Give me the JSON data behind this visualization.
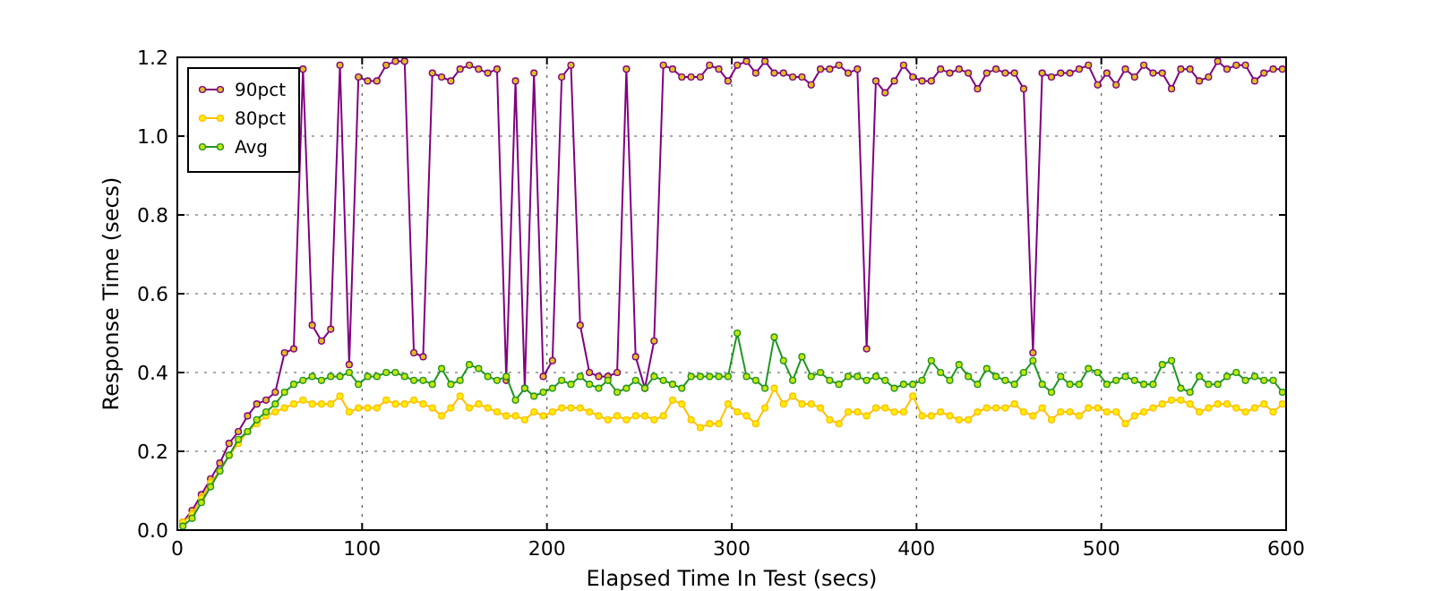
{
  "chart_data": {
    "type": "line",
    "xlabel": "Elapsed Time In Test (secs)",
    "ylabel": "Response Time (secs)",
    "x": [
      3,
      8,
      13,
      18,
      23,
      28,
      33,
      38,
      43,
      48,
      53,
      58,
      63,
      68,
      73,
      78,
      83,
      88,
      93,
      98,
      103,
      108,
      113,
      118,
      123,
      128,
      133,
      138,
      143,
      148,
      153,
      158,
      163,
      168,
      173,
      178,
      183,
      188,
      193,
      198,
      203,
      208,
      213,
      218,
      223,
      228,
      233,
      238,
      243,
      248,
      253,
      258,
      263,
      268,
      273,
      278,
      283,
      288,
      293,
      298,
      303,
      308,
      313,
      318,
      323,
      328,
      333,
      338,
      343,
      348,
      353,
      358,
      363,
      368,
      373,
      378,
      383,
      388,
      393,
      398,
      403,
      408,
      413,
      418,
      423,
      428,
      433,
      438,
      443,
      448,
      453,
      458,
      463,
      468,
      473,
      478,
      483,
      488,
      493,
      498,
      503,
      508,
      513,
      518,
      523,
      528,
      533,
      538,
      543,
      548,
      553,
      558,
      563,
      568,
      573,
      578,
      583,
      588,
      593,
      598
    ],
    "series": [
      {
        "name": "90pct",
        "color": "#800080",
        "values": [
          0.02,
          0.05,
          0.09,
          0.13,
          0.17,
          0.22,
          0.25,
          0.29,
          0.32,
          0.33,
          0.35,
          0.45,
          0.46,
          1.17,
          0.52,
          0.48,
          0.51,
          1.18,
          0.42,
          1.15,
          1.14,
          1.14,
          1.18,
          1.19,
          1.19,
          0.45,
          0.44,
          1.16,
          1.15,
          1.14,
          1.17,
          1.18,
          1.17,
          1.16,
          1.17,
          0.38,
          1.14,
          0.36,
          1.16,
          0.39,
          0.43,
          1.15,
          1.18,
          0.52,
          0.4,
          0.39,
          0.39,
          0.4,
          1.17,
          0.44,
          0.36,
          0.48,
          1.18,
          1.17,
          1.15,
          1.15,
          1.15,
          1.18,
          1.17,
          1.14,
          1.18,
          1.19,
          1.16,
          1.19,
          1.16,
          1.16,
          1.15,
          1.15,
          1.13,
          1.17,
          1.17,
          1.18,
          1.16,
          1.17,
          0.46,
          1.14,
          1.11,
          1.14,
          1.18,
          1.15,
          1.14,
          1.14,
          1.17,
          1.16,
          1.17,
          1.16,
          1.12,
          1.16,
          1.17,
          1.16,
          1.16,
          1.12,
          0.45,
          1.16,
          1.15,
          1.16,
          1.16,
          1.17,
          1.18,
          1.13,
          1.16,
          1.13,
          1.17,
          1.15,
          1.18,
          1.16,
          1.16,
          1.12,
          1.17,
          1.17,
          1.14,
          1.15,
          1.19,
          1.17,
          1.18,
          1.18,
          1.14,
          1.16,
          1.17,
          1.17
        ]
      },
      {
        "name": "80pct",
        "color": "#ffbf00",
        "values": [
          0.02,
          0.04,
          0.08,
          0.12,
          0.15,
          0.19,
          0.22,
          0.25,
          0.27,
          0.29,
          0.3,
          0.31,
          0.32,
          0.33,
          0.32,
          0.32,
          0.32,
          0.34,
          0.3,
          0.31,
          0.31,
          0.31,
          0.33,
          0.32,
          0.32,
          0.33,
          0.32,
          0.31,
          0.29,
          0.31,
          0.34,
          0.31,
          0.32,
          0.31,
          0.3,
          0.29,
          0.29,
          0.28,
          0.3,
          0.29,
          0.3,
          0.31,
          0.31,
          0.31,
          0.3,
          0.29,
          0.28,
          0.29,
          0.28,
          0.29,
          0.29,
          0.28,
          0.29,
          0.33,
          0.32,
          0.28,
          0.26,
          0.27,
          0.27,
          0.32,
          0.3,
          0.29,
          0.27,
          0.31,
          0.36,
          0.32,
          0.34,
          0.32,
          0.32,
          0.31,
          0.28,
          0.27,
          0.3,
          0.3,
          0.29,
          0.31,
          0.31,
          0.3,
          0.3,
          0.34,
          0.29,
          0.29,
          0.3,
          0.29,
          0.28,
          0.28,
          0.3,
          0.31,
          0.31,
          0.31,
          0.32,
          0.3,
          0.29,
          0.31,
          0.28,
          0.3,
          0.3,
          0.29,
          0.31,
          0.31,
          0.3,
          0.3,
          0.27,
          0.29,
          0.3,
          0.31,
          0.32,
          0.33,
          0.33,
          0.32,
          0.3,
          0.31,
          0.32,
          0.32,
          0.31,
          0.3,
          0.31,
          0.32,
          0.3,
          0.32
        ]
      },
      {
        "name": "Avg",
        "color": "#1f961f",
        "values": [
          0.01,
          0.03,
          0.07,
          0.11,
          0.15,
          0.19,
          0.23,
          0.25,
          0.28,
          0.3,
          0.32,
          0.35,
          0.37,
          0.38,
          0.39,
          0.38,
          0.39,
          0.39,
          0.4,
          0.37,
          0.39,
          0.39,
          0.4,
          0.4,
          0.39,
          0.38,
          0.38,
          0.37,
          0.41,
          0.37,
          0.38,
          0.42,
          0.41,
          0.39,
          0.38,
          0.39,
          0.33,
          0.36,
          0.34,
          0.35,
          0.36,
          0.38,
          0.37,
          0.39,
          0.37,
          0.36,
          0.38,
          0.35,
          0.36,
          0.38,
          0.36,
          0.39,
          0.38,
          0.37,
          0.36,
          0.39,
          0.39,
          0.39,
          0.39,
          0.39,
          0.5,
          0.39,
          0.38,
          0.36,
          0.49,
          0.43,
          0.38,
          0.44,
          0.39,
          0.4,
          0.38,
          0.37,
          0.39,
          0.39,
          0.38,
          0.39,
          0.38,
          0.36,
          0.37,
          0.37,
          0.38,
          0.43,
          0.4,
          0.38,
          0.42,
          0.39,
          0.37,
          0.41,
          0.39,
          0.38,
          0.37,
          0.4,
          0.43,
          0.37,
          0.35,
          0.39,
          0.37,
          0.37,
          0.41,
          0.4,
          0.37,
          0.38,
          0.39,
          0.38,
          0.37,
          0.37,
          0.42,
          0.43,
          0.36,
          0.35,
          0.39,
          0.37,
          0.37,
          0.39,
          0.4,
          0.38,
          0.39,
          0.38,
          0.38,
          0.35
        ]
      }
    ],
    "xlim": [
      0,
      600
    ],
    "xticks": [
      0,
      100,
      200,
      300,
      400,
      500,
      600
    ],
    "ylim": [
      0,
      1.2
    ],
    "yticks": [
      {
        "value": 0,
        "label": "0.0"
      },
      {
        "value": 0.2,
        "label": "0.2"
      },
      {
        "value": 0.4,
        "label": "0.4"
      },
      {
        "value": 0.6,
        "label": "0.6"
      },
      {
        "value": 0.8,
        "label": "0.8"
      },
      {
        "value": 1,
        "label": "1.0"
      },
      {
        "value": 1.2,
        "label": "1.2"
      }
    ],
    "grid": true,
    "legend": "top left",
    "marker": "circle",
    "line_style": "solid"
  }
}
